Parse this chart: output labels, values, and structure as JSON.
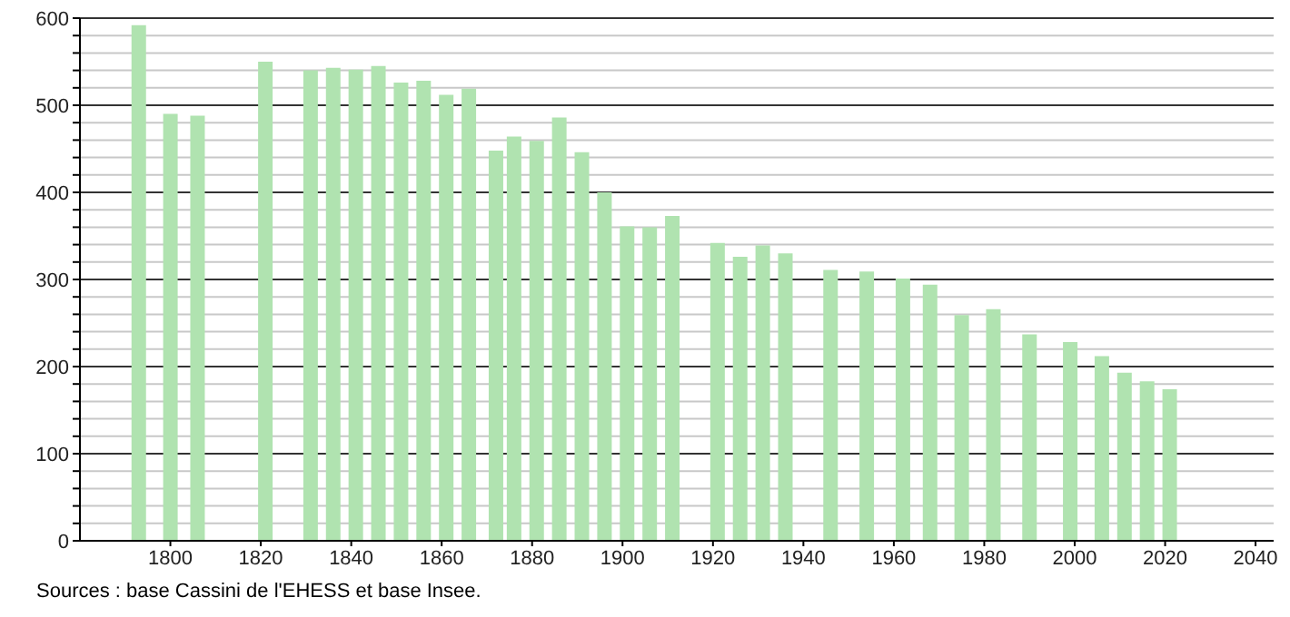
{
  "chart_data": {
    "type": "bar",
    "x": [
      1793,
      1800,
      1806,
      1821,
      1831,
      1836,
      1841,
      1846,
      1851,
      1856,
      1861,
      1866,
      1872,
      1876,
      1881,
      1886,
      1891,
      1896,
      1901,
      1906,
      1911,
      1921,
      1926,
      1931,
      1936,
      1946,
      1954,
      1962,
      1968,
      1975,
      1982,
      1990,
      1999,
      2006,
      2011,
      2016,
      2021
    ],
    "values": [
      592,
      490,
      488,
      550,
      540,
      543,
      541,
      545,
      526,
      528,
      512,
      519,
      448,
      464,
      459,
      486,
      446,
      400,
      361,
      360,
      373,
      342,
      326,
      339,
      330,
      311,
      309,
      301,
      294,
      259,
      266,
      237,
      228,
      212,
      193,
      183,
      174
    ],
    "color": "#b0e3b0",
    "xlim": [
      1780,
      2044
    ],
    "xticks": [
      1800,
      1820,
      1840,
      1860,
      1880,
      1900,
      1920,
      1940,
      1960,
      1980,
      2000,
      2020,
      2040
    ],
    "ylim": [
      0,
      600
    ],
    "yticks": [
      0,
      {
        "value": 20,
        "label": null
      },
      {
        "value": 40,
        "label": null
      },
      {
        "value": 60,
        "label": null
      },
      {
        "value": 80,
        "label": null
      },
      100,
      {
        "value": 120,
        "label": null
      },
      {
        "value": 140,
        "label": null
      },
      {
        "value": 160,
        "label": null
      },
      {
        "value": 180,
        "label": null
      },
      200,
      {
        "value": 220,
        "label": null
      },
      {
        "value": 240,
        "label": null
      },
      {
        "value": 260,
        "label": null
      },
      {
        "value": 280,
        "label": null
      },
      300,
      {
        "value": 320,
        "label": null
      },
      {
        "value": 340,
        "label": null
      },
      {
        "value": 360,
        "label": null
      },
      {
        "value": 380,
        "label": null
      },
      400,
      {
        "value": 420,
        "label": null
      },
      {
        "value": 440,
        "label": null
      },
      {
        "value": 460,
        "label": null
      },
      {
        "value": 480,
        "label": null
      },
      500,
      {
        "value": 520,
        "label": null
      },
      {
        "value": 540,
        "label": null
      },
      {
        "value": 560,
        "label": null
      },
      {
        "value": 580,
        "label": null
      },
      600
    ],
    "grid": "y",
    "legend": false,
    "annotations": [
      "Sources : base Cassini de l'EHESS et base Insee."
    ]
  }
}
